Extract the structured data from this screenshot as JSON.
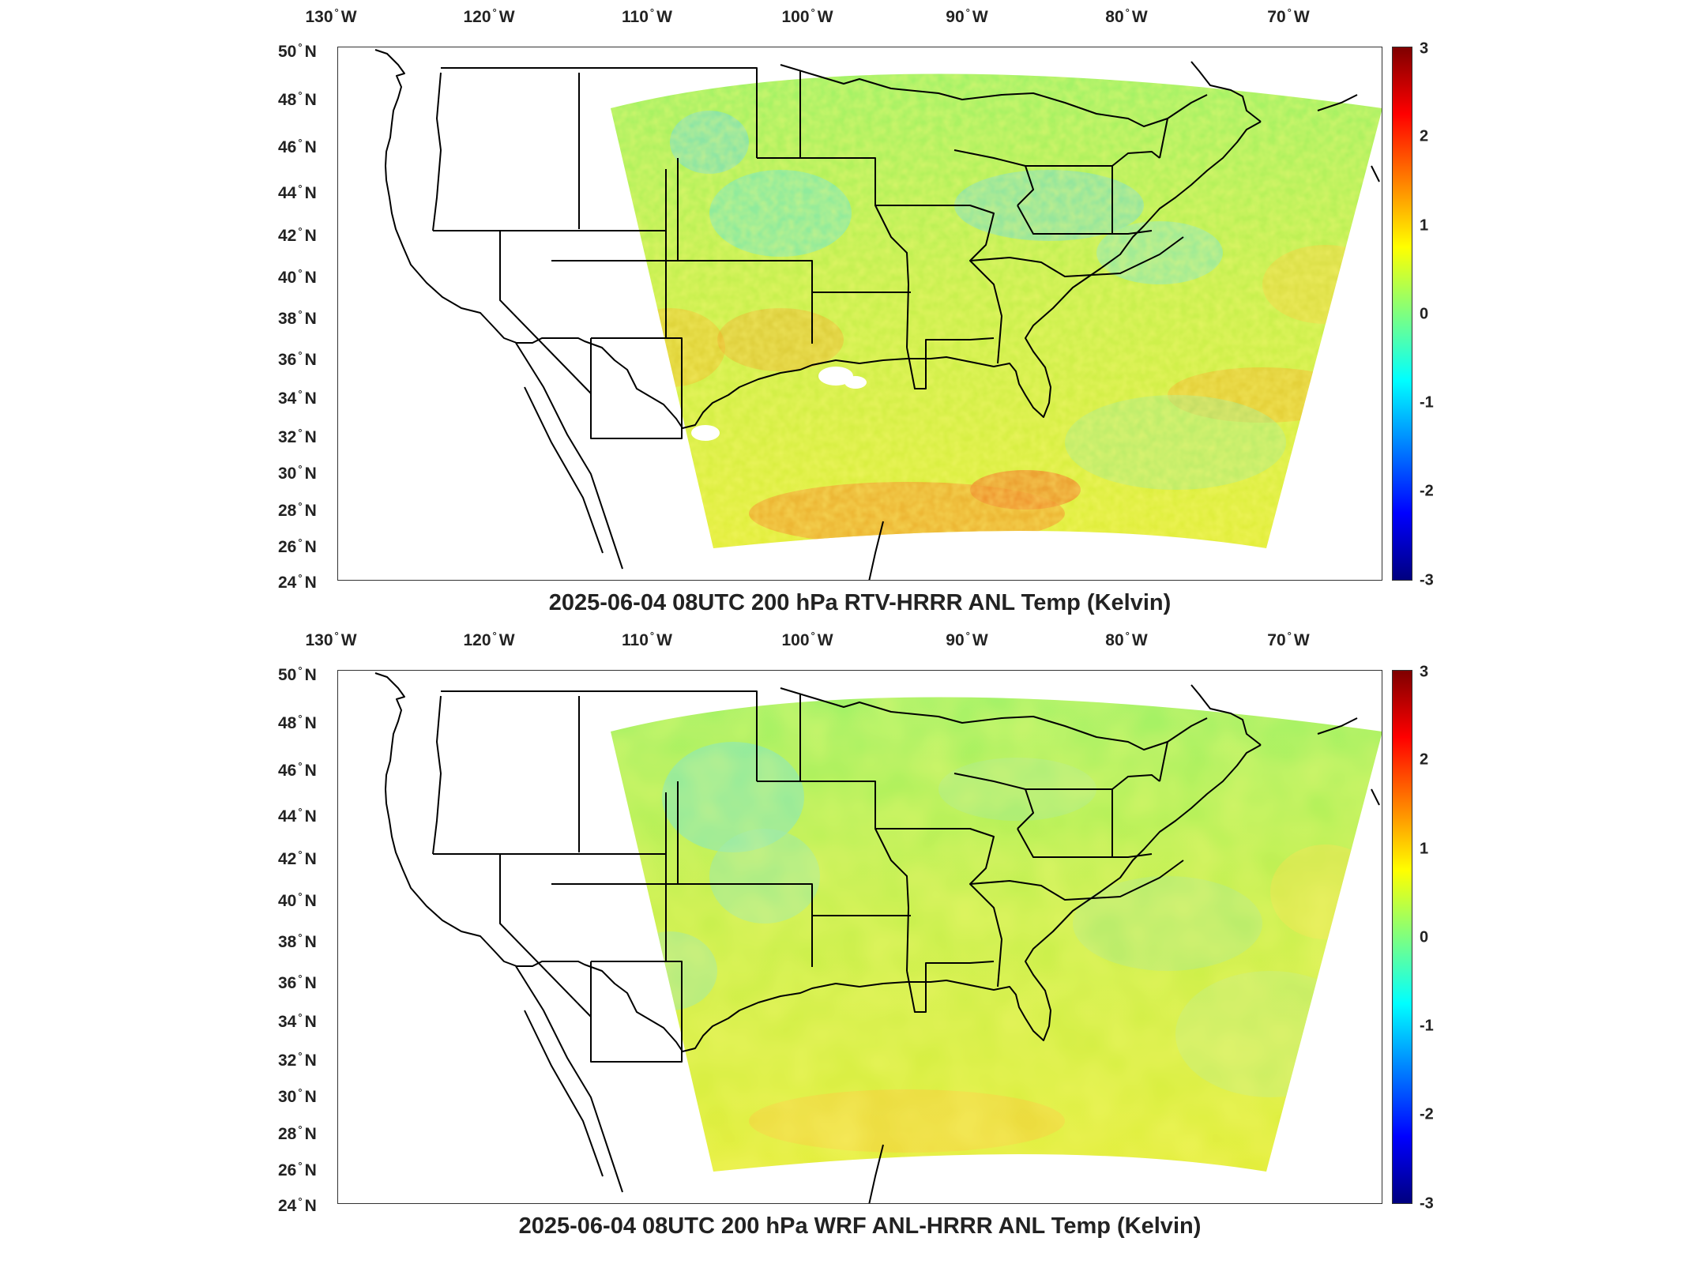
{
  "colors": {
    "colormap": [
      "#00007f",
      "#0000ff",
      "#007fff",
      "#00ffff",
      "#7fff7f",
      "#ffff00",
      "#ff7f00",
      "#ff0000",
      "#7f0000"
    ],
    "outline": "#000000"
  },
  "panels": [
    {
      "title": "2025-06-04 08UTC 200 hPa RTV-HRRR ANL Temp (Kelvin)",
      "dominant_field": "mixed-noisy",
      "notable_features": [
        "warm anomalies along Gulf coast",
        "white gap over Texas/Oklahoma panhandle"
      ]
    },
    {
      "title": "2025-06-04 08UTC 200 hPa WRF ANL-HRRR ANL Temp (Kelvin)",
      "dominant_field": "smooth-mostly-yellow-green",
      "notable_features": [
        "cooler anomaly over Wyoming/Montana",
        "warm anomalies along Gulf coast"
      ]
    }
  ],
  "axes": {
    "lon_labels": [
      {
        "deg": "130",
        "dir": "W"
      },
      {
        "deg": "120",
        "dir": "W"
      },
      {
        "deg": "110",
        "dir": "W"
      },
      {
        "deg": "100",
        "dir": "W"
      },
      {
        "deg": "90",
        "dir": "W"
      },
      {
        "deg": "80",
        "dir": "W"
      },
      {
        "deg": "70",
        "dir": "W"
      }
    ],
    "lat_labels": [
      {
        "deg": "50",
        "dir": "N"
      },
      {
        "deg": "48",
        "dir": "N"
      },
      {
        "deg": "46",
        "dir": "N"
      },
      {
        "deg": "44",
        "dir": "N"
      },
      {
        "deg": "42",
        "dir": "N"
      },
      {
        "deg": "40",
        "dir": "N"
      },
      {
        "deg": "38",
        "dir": "N"
      },
      {
        "deg": "36",
        "dir": "N"
      },
      {
        "deg": "34",
        "dir": "N"
      },
      {
        "deg": "32",
        "dir": "N"
      },
      {
        "deg": "30",
        "dir": "N"
      },
      {
        "deg": "28",
        "dir": "N"
      },
      {
        "deg": "26",
        "dir": "N"
      },
      {
        "deg": "24",
        "dir": "N"
      }
    ]
  },
  "colorbar": {
    "min": -3,
    "max": 3,
    "ticks": [
      "3",
      "2",
      "1",
      "0",
      "-1",
      "-2",
      "-3"
    ]
  }
}
